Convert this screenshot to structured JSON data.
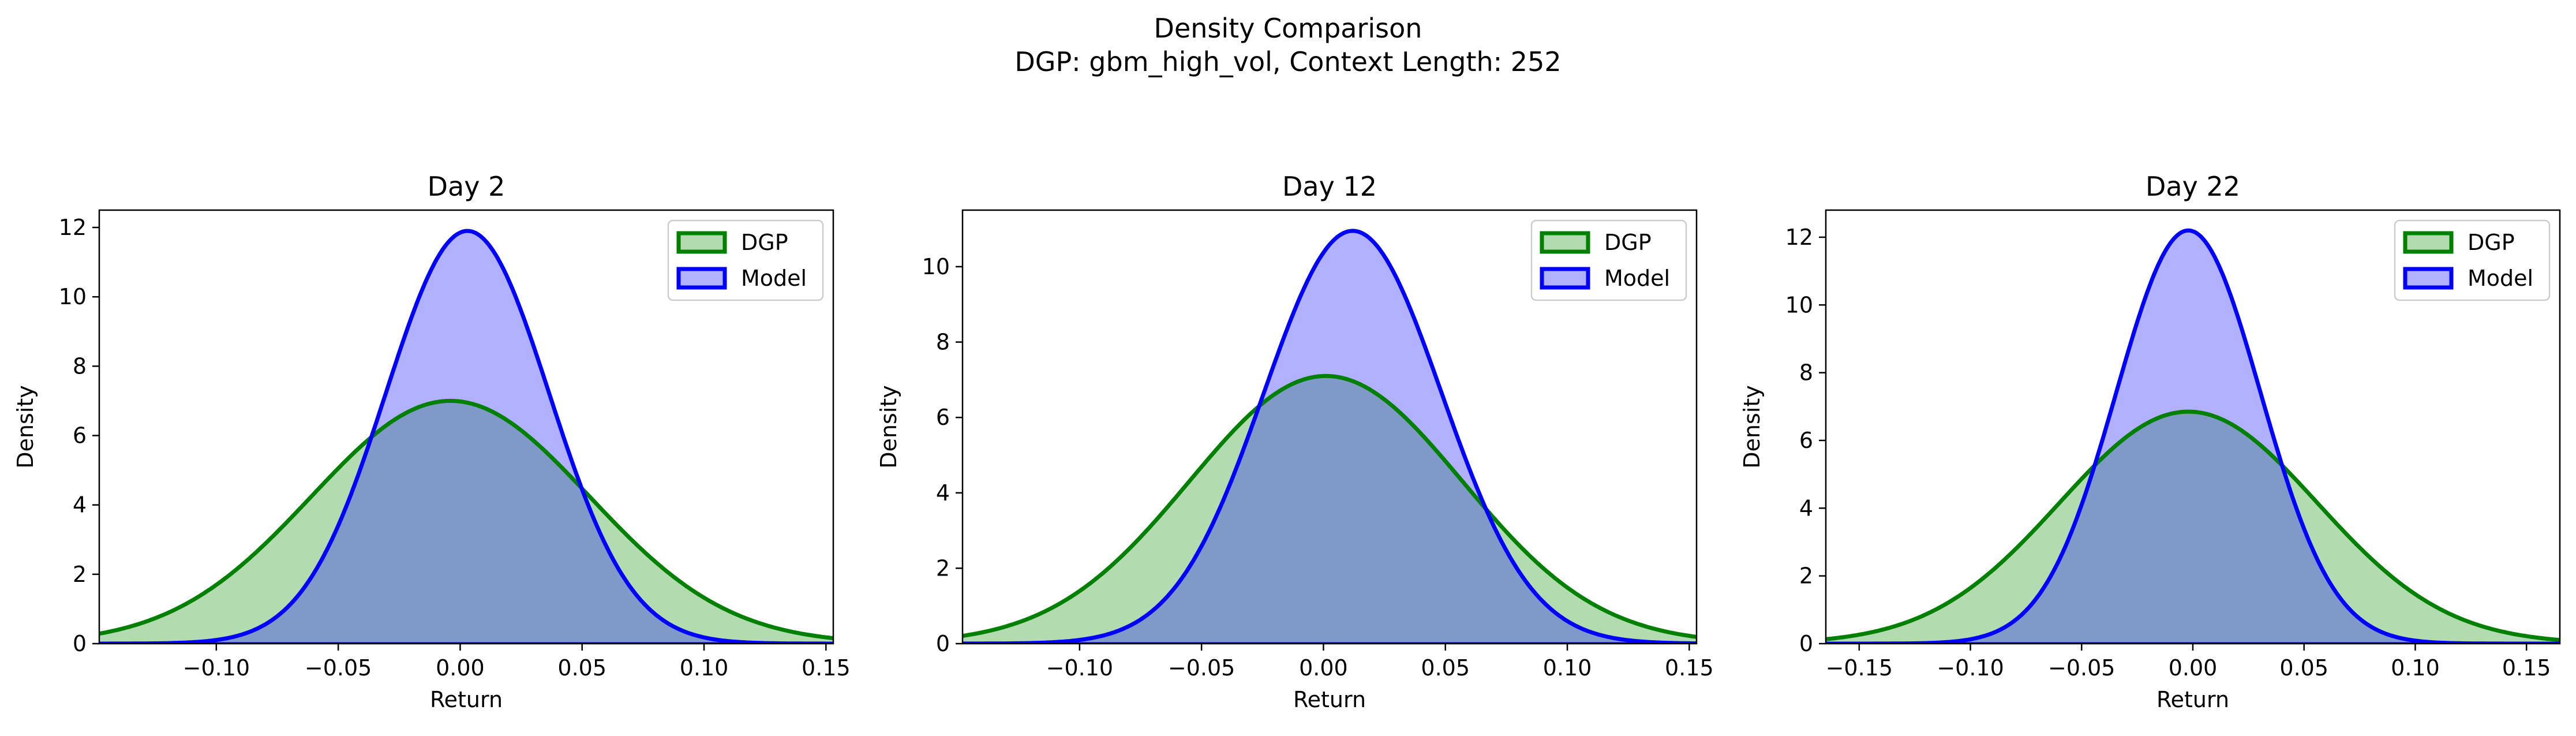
{
  "figure": {
    "title_line1": "Density Comparison",
    "title_line2": "DGP: gbm_high_vol, Context Length: 252"
  },
  "colors": {
    "dgp_line": "#008000",
    "dgp_fill": "#b3dbb0",
    "model_line": "#0000ff",
    "model_fill": "#b1b1ff",
    "overlap_fill": "#7f99c8"
  },
  "chart_data": [
    {
      "type": "area",
      "title": "Day 2",
      "xlabel": "Return",
      "ylabel": "Density",
      "xlim": [
        -0.148,
        0.153
      ],
      "ylim": [
        0,
        12.5
      ],
      "xticks": [
        -0.1,
        -0.05,
        0.0,
        0.05,
        0.1,
        0.15
      ],
      "xtick_labels": [
        "−0.10",
        "−0.05",
        "0.00",
        "0.05",
        "0.10",
        "0.15"
      ],
      "yticks": [
        0,
        2,
        4,
        6,
        8,
        10,
        12
      ],
      "legend": {
        "position": "upper right",
        "entries": [
          "DGP",
          "Model"
        ]
      },
      "series": [
        {
          "name": "DGP",
          "shape": "gaussian",
          "mean": -0.004,
          "peak": 7.0,
          "std": 0.057
        },
        {
          "name": "Model",
          "shape": "gaussian",
          "mean": 0.003,
          "peak": 11.9,
          "std": 0.0335
        }
      ]
    },
    {
      "type": "area",
      "title": "Day 12",
      "xlabel": "Return",
      "ylabel": "Density",
      "xlim": [
        -0.148,
        0.153
      ],
      "ylim": [
        0,
        11.5
      ],
      "xticks": [
        -0.1,
        -0.05,
        0.0,
        0.05,
        0.1,
        0.15
      ],
      "xtick_labels": [
        "−0.10",
        "−0.05",
        "0.00",
        "0.05",
        "0.10",
        "0.15"
      ],
      "yticks": [
        0,
        2,
        4,
        6,
        8,
        10
      ],
      "legend": {
        "position": "upper right",
        "entries": [
          "DGP",
          "Model"
        ]
      },
      "series": [
        {
          "name": "DGP",
          "shape": "gaussian",
          "mean": 0.001,
          "peak": 7.1,
          "std": 0.056
        },
        {
          "name": "Model",
          "shape": "gaussian",
          "mean": 0.012,
          "peak": 10.95,
          "std": 0.0365
        }
      ]
    },
    {
      "type": "area",
      "title": "Day 22",
      "xlabel": "Return",
      "ylabel": "Density",
      "xlim": [
        -0.165,
        0.165
      ],
      "ylim": [
        0,
        12.8
      ],
      "xticks": [
        -0.15,
        -0.1,
        -0.05,
        0.0,
        0.05,
        0.1,
        0.15
      ],
      "xtick_labels": [
        "−0.15",
        "−0.10",
        "−0.05",
        "0.00",
        "0.05",
        "0.10",
        "0.15"
      ],
      "yticks": [
        0,
        2,
        4,
        6,
        8,
        10,
        12
      ],
      "legend": {
        "position": "upper right",
        "entries": [
          "DGP",
          "Model"
        ]
      },
      "series": [
        {
          "name": "DGP",
          "shape": "gaussian",
          "mean": -0.002,
          "peak": 6.85,
          "std": 0.058
        },
        {
          "name": "Model",
          "shape": "gaussian",
          "mean": -0.002,
          "peak": 12.2,
          "std": 0.0325
        }
      ]
    }
  ]
}
